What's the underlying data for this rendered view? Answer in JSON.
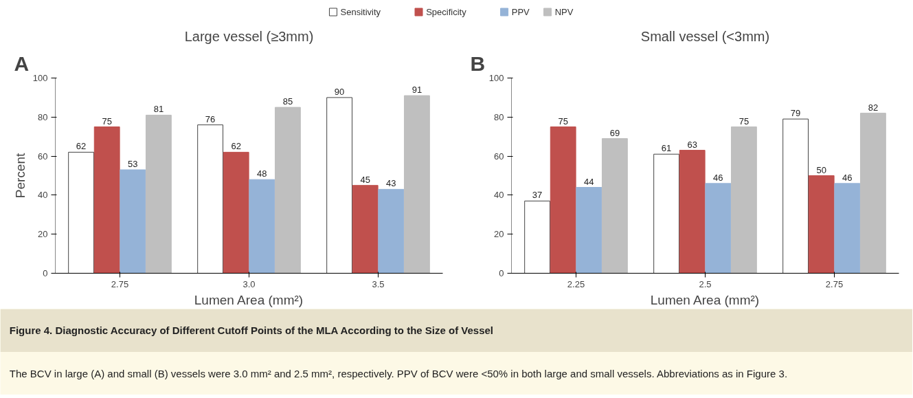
{
  "chart_data": [
    {
      "type": "bar",
      "title": "Large vessel (≥3mm)",
      "xlabel": "Lumen Area (mm²)",
      "ylabel": "Percent",
      "annotations": [
        "A",
        "Figure 4. Diagnostic Accuracy of Different Cutoff Points of the MLA According to the Size of Vessel",
        "The BCV in large (A) and small (B) vessels were 3.0 mm² and 2.5 mm², respectively. PPV of BCV were <50% in both large and small vessels. Abbreviations as in Figure 3."
      ],
      "categories": [
        "2.75",
        "3.0",
        "3.5"
      ],
      "series": [
        {
          "name": "Sensitivity",
          "color": "#ffffff",
          "values": [
            62,
            76,
            90
          ]
        },
        {
          "name": "Specificity",
          "color": "#c0504d",
          "values": [
            75,
            62,
            45
          ]
        },
        {
          "name": "PPV",
          "color": "#95b3d7",
          "values": [
            53,
            48,
            43
          ]
        },
        {
          "name": "NPV",
          "color": "#bfbfbf",
          "values": [
            81,
            85,
            91
          ]
        }
      ],
      "ylim": [
        0,
        100
      ],
      "yticks": [
        0,
        20,
        40,
        60,
        80,
        100
      ],
      "grid": false,
      "legend": "top",
      "data_labels": true
    },
    {
      "type": "bar",
      "title": "Small vessel (<3mm)",
      "xlabel": "Lumen Area (mm²)",
      "annotations": [
        "B"
      ],
      "categories": [
        "2.25",
        "2.5",
        "2.75"
      ],
      "series": [
        {
          "color": "#ffffff",
          "values": [
            37,
            61,
            79
          ]
        },
        {
          "color": "#c0504d",
          "values": [
            75,
            63,
            50
          ]
        },
        {
          "color": "#95b3d7",
          "values": [
            44,
            46,
            46
          ]
        },
        {
          "color": "#bfbfbf",
          "values": [
            69,
            75,
            82
          ]
        }
      ],
      "ylim": [
        0,
        100
      ],
      "yticks": [
        0,
        20,
        40,
        60,
        80,
        100
      ],
      "grid": false,
      "data_labels": true
    }
  ]
}
